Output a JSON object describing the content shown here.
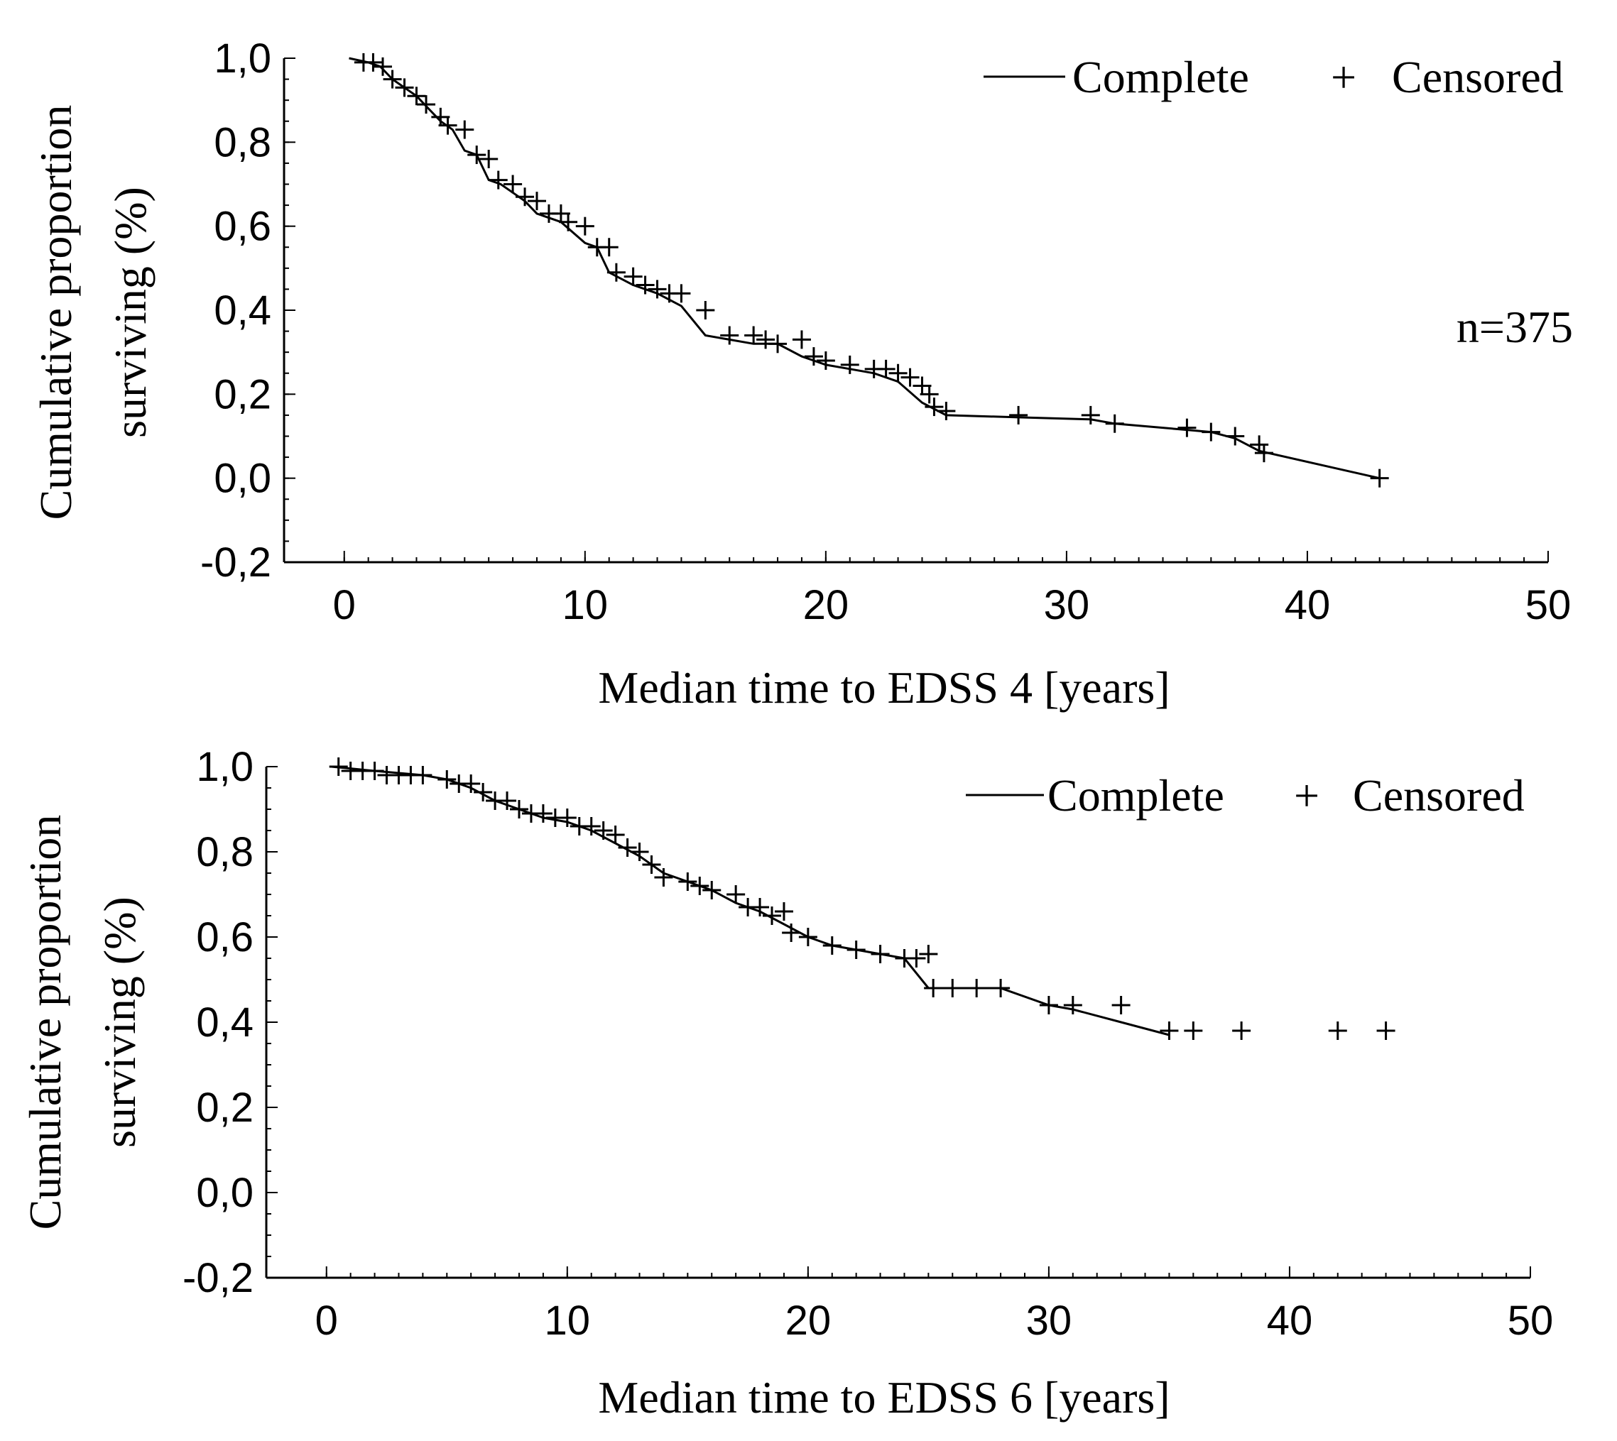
{
  "chart_data": [
    {
      "type": "line",
      "id": "edss4",
      "xlabel": "Median time to EDSS 4 [years]",
      "ylabel_line1": "Cumulative proportion",
      "ylabel_line2": "surviving (%)",
      "xlim": [
        -2.5,
        50
      ],
      "ylim": [
        -0.2,
        1.0
      ],
      "xticks": [
        0,
        10,
        20,
        30,
        40,
        50
      ],
      "xtick_labels": [
        "0",
        "10",
        "20",
        "30",
        "40",
        "50"
      ],
      "yticks": [
        1.0,
        0.8,
        0.6,
        0.4,
        0.2,
        0.0,
        -0.2
      ],
      "ytick_labels": [
        "1,0",
        "0,8",
        "0,6",
        "0,4",
        "0,2",
        "0,0",
        "-0,2"
      ],
      "legend": {
        "position": "top-right",
        "complete_label": "Complete",
        "censored_label": "Censored",
        "censored_symbol": "+"
      },
      "annotation": "n=375",
      "complete_curve": {
        "x": [
          0.2,
          1,
          1.5,
          2,
          2.5,
          3,
          3.5,
          4,
          4.5,
          5,
          5.5,
          6,
          6.5,
          7,
          7.5,
          8,
          9,
          10,
          10.5,
          11,
          12,
          13,
          14,
          15,
          16,
          17,
          18,
          19,
          20,
          21,
          22,
          23,
          24,
          25,
          28,
          31,
          32,
          35,
          36,
          37,
          38,
          43
        ],
        "y": [
          1.0,
          0.99,
          0.98,
          0.95,
          0.93,
          0.91,
          0.88,
          0.85,
          0.83,
          0.78,
          0.77,
          0.71,
          0.7,
          0.68,
          0.66,
          0.63,
          0.61,
          0.56,
          0.55,
          0.49,
          0.46,
          0.44,
          0.41,
          0.34,
          0.33,
          0.32,
          0.32,
          0.29,
          0.27,
          0.26,
          0.25,
          0.23,
          0.18,
          0.15,
          0.145,
          0.14,
          0.13,
          0.115,
          0.11,
          0.095,
          0.065,
          0.0
        ]
      },
      "censored_points": {
        "x": [
          0.8,
          1.2,
          1.6,
          2.0,
          2.5,
          3.0,
          3.4,
          4.0,
          4.3,
          5.0,
          5.5,
          6.0,
          6.4,
          7.0,
          7.5,
          8.0,
          8.5,
          9.0,
          9.3,
          10.0,
          10.5,
          11.0,
          11.3,
          12.0,
          12.5,
          13.0,
          13.5,
          14.0,
          15.0,
          16.0,
          17.0,
          17.5,
          18.0,
          19.0,
          19.5,
          20.0,
          21.0,
          22.0,
          22.5,
          23.0,
          23.5,
          24.0,
          24.3,
          24.5,
          25.0,
          28.0,
          31.0,
          32.0,
          35.0,
          36.0,
          37.0,
          38.0,
          38.2,
          43.0
        ],
        "y": [
          0.99,
          0.99,
          0.98,
          0.95,
          0.93,
          0.91,
          0.89,
          0.86,
          0.84,
          0.83,
          0.77,
          0.76,
          0.71,
          0.7,
          0.67,
          0.66,
          0.63,
          0.63,
          0.61,
          0.6,
          0.55,
          0.55,
          0.49,
          0.48,
          0.46,
          0.45,
          0.44,
          0.44,
          0.4,
          0.34,
          0.34,
          0.33,
          0.32,
          0.33,
          0.29,
          0.28,
          0.27,
          0.26,
          0.26,
          0.25,
          0.24,
          0.22,
          0.2,
          0.17,
          0.16,
          0.15,
          0.15,
          0.13,
          0.12,
          0.11,
          0.1,
          0.08,
          0.06,
          0.0
        ]
      }
    },
    {
      "type": "line",
      "id": "edss6",
      "xlabel": "Median time to EDSS 6 [years]",
      "ylabel_line1": "Cumulative proportion",
      "ylabel_line2": "surviving (%)",
      "xlim": [
        -2.5,
        50
      ],
      "ylim": [
        -0.2,
        1.0
      ],
      "xticks": [
        0,
        10,
        20,
        30,
        40,
        50
      ],
      "xtick_labels": [
        "0",
        "10",
        "20",
        "30",
        "40",
        "50"
      ],
      "yticks": [
        1.0,
        0.8,
        0.6,
        0.4,
        0.2,
        0.0,
        -0.2
      ],
      "ytick_labels": [
        "1,0",
        "0,8",
        "0,6",
        "0,4",
        "0,2",
        "0,0",
        "-0,2"
      ],
      "legend": {
        "position": "top-right",
        "complete_label": "Complete",
        "censored_label": "Censored",
        "censored_symbol": "+"
      },
      "annotation": "",
      "complete_curve": {
        "x": [
          0.2,
          2,
          4,
          5,
          6,
          7,
          8,
          9,
          10,
          11,
          12,
          13,
          14,
          15,
          16,
          17,
          18,
          19,
          20,
          21,
          22,
          23,
          24,
          25,
          26,
          27,
          28,
          30,
          31,
          33,
          35
        ],
        "y": [
          1.0,
          0.99,
          0.98,
          0.97,
          0.95,
          0.92,
          0.9,
          0.88,
          0.87,
          0.85,
          0.82,
          0.79,
          0.75,
          0.73,
          0.71,
          0.68,
          0.66,
          0.63,
          0.6,
          0.58,
          0.57,
          0.56,
          0.55,
          0.48,
          0.48,
          0.48,
          0.48,
          0.44,
          0.43,
          0.4,
          0.37
        ]
      },
      "censored_points": {
        "x": [
          0.5,
          1.0,
          1.5,
          2.0,
          2.5,
          3.0,
          3.5,
          4.0,
          5.0,
          5.5,
          6.0,
          6.5,
          7.0,
          7.5,
          8.0,
          8.5,
          9.0,
          9.5,
          10.0,
          10.5,
          11.0,
          11.5,
          12.0,
          12.5,
          13.0,
          13.5,
          14.0,
          15.0,
          15.5,
          16.0,
          17.0,
          17.5,
          18.0,
          18.5,
          19.0,
          19.3,
          20.0,
          21.0,
          22.0,
          23.0,
          24.0,
          24.5,
          25.0,
          25.2,
          26.0,
          27.0,
          28.0,
          30.0,
          31.0,
          33.0,
          35.0,
          36.0,
          38.0,
          42.0,
          44.0
        ],
        "y": [
          1.0,
          0.99,
          0.99,
          0.99,
          0.98,
          0.98,
          0.98,
          0.98,
          0.97,
          0.96,
          0.96,
          0.94,
          0.92,
          0.92,
          0.9,
          0.89,
          0.89,
          0.88,
          0.88,
          0.86,
          0.86,
          0.85,
          0.84,
          0.81,
          0.8,
          0.77,
          0.74,
          0.73,
          0.72,
          0.71,
          0.7,
          0.67,
          0.67,
          0.65,
          0.66,
          0.61,
          0.6,
          0.58,
          0.57,
          0.56,
          0.55,
          0.55,
          0.56,
          0.48,
          0.48,
          0.48,
          0.48,
          0.44,
          0.44,
          0.44,
          0.38,
          0.38,
          0.38,
          0.38,
          0.38
        ]
      }
    }
  ]
}
